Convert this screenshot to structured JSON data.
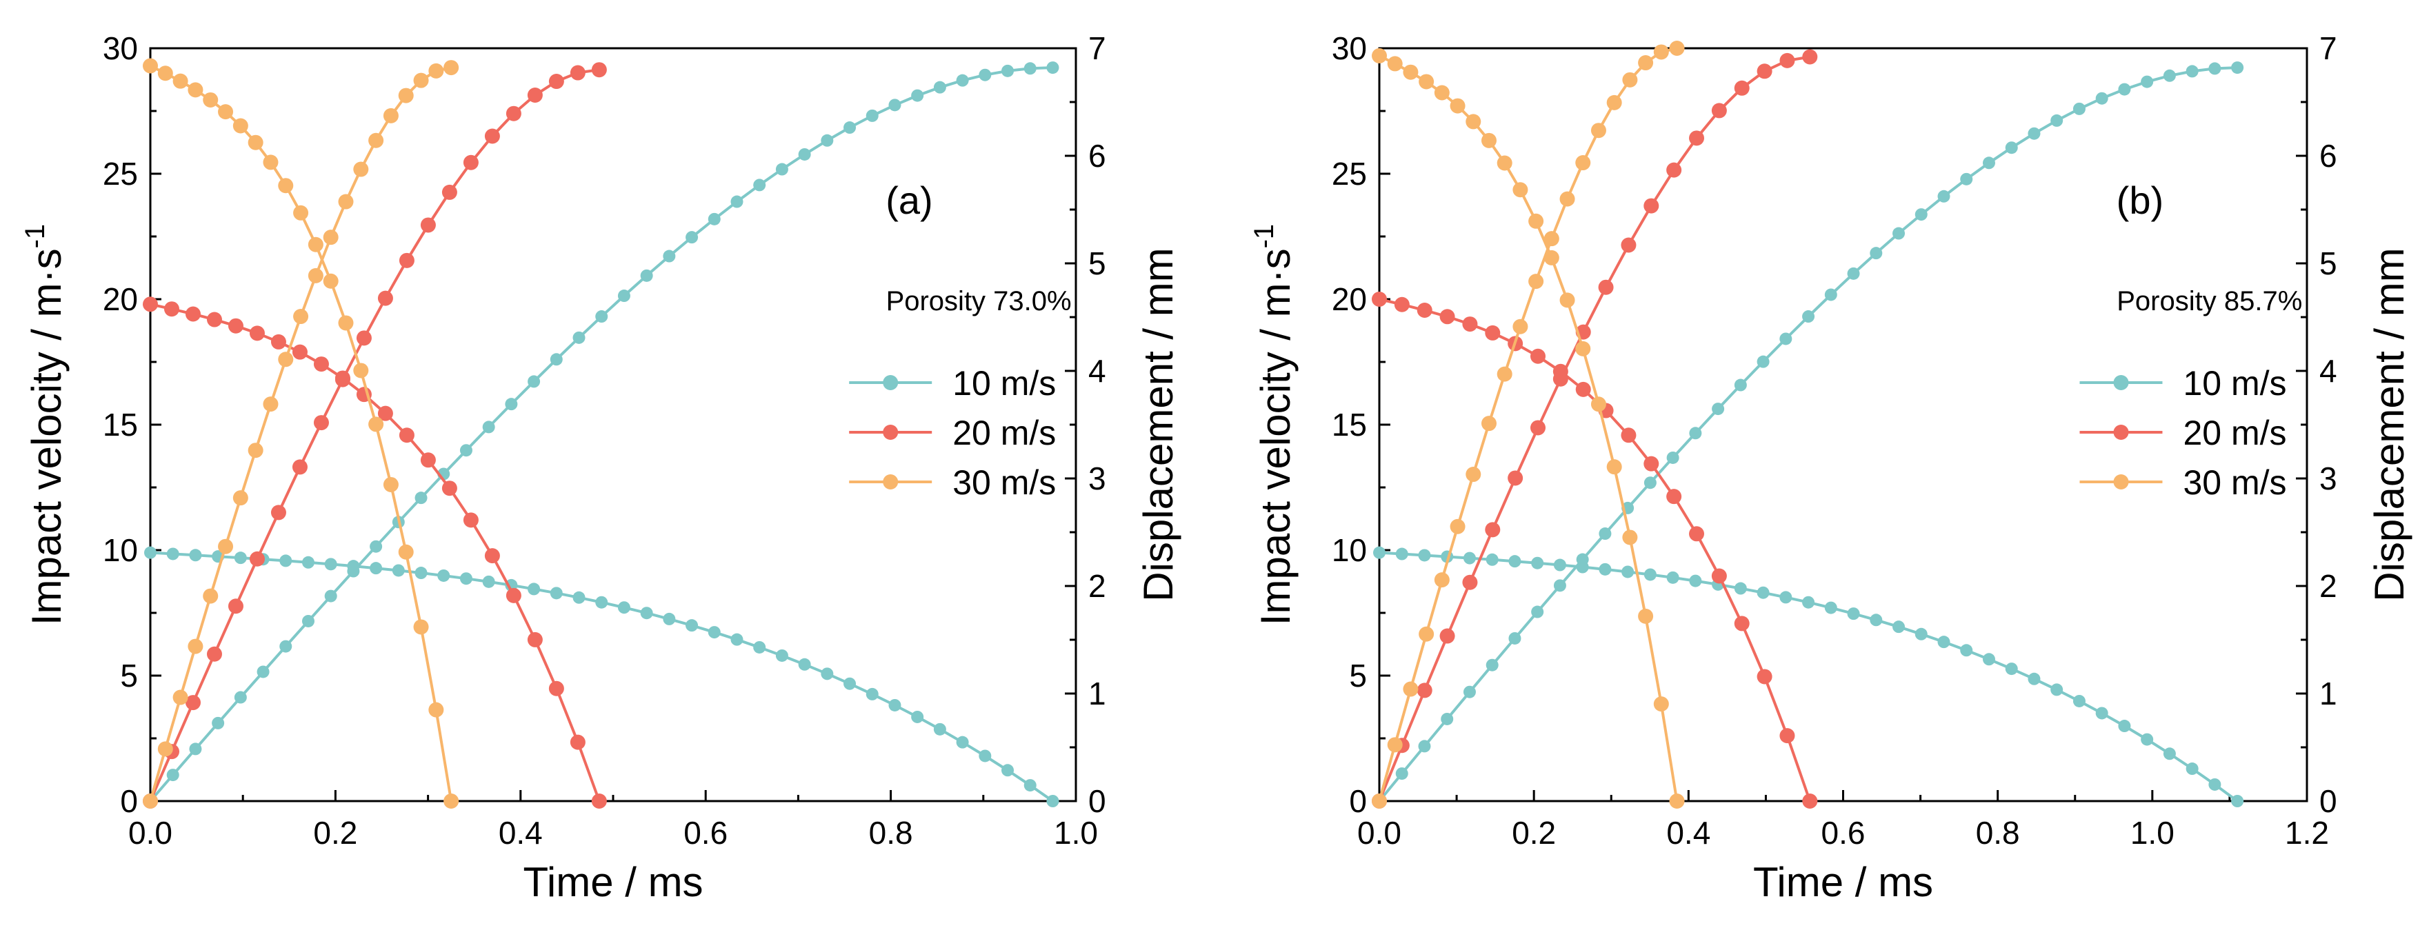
{
  "chart_data": [
    {
      "type": "line",
      "panel_label": "(a)",
      "annotation": "Porosity 73.0%",
      "xlabel": "Time / ms",
      "ylabel": "Impact velocity / m·s",
      "ylabel_sup": "-1",
      "y2label": "Displacement / mm",
      "xlim": [
        0.0,
        1.0
      ],
      "ylim": [
        0,
        30
      ],
      "y2lim": [
        0,
        7
      ],
      "xticks": [
        "0.0",
        "0.2",
        "0.4",
        "0.6",
        "0.8",
        "1.0"
      ],
      "yticks": [
        "0",
        "5",
        "10",
        "15",
        "20",
        "25",
        "30"
      ],
      "y2ticks": [
        "0",
        "1",
        "2",
        "3",
        "4",
        "5",
        "6",
        "7"
      ],
      "legend_position": "center-right",
      "series": [
        {
          "name": "10 m/s",
          "color": "#7ec8c8",
          "v0": 9.9,
          "duration": 0.975,
          "disp_max": 6.82,
          "points": 40
        },
        {
          "name": "20 m/s",
          "color": "#f06a5e",
          "v0": 19.8,
          "duration": 0.485,
          "disp_max": 6.8,
          "points": 21
        },
        {
          "name": "30 m/s",
          "color": "#f8b56a",
          "v0": 29.3,
          "duration": 0.325,
          "disp_max": 6.82,
          "points": 20
        }
      ]
    },
    {
      "type": "line",
      "panel_label": "(b)",
      "annotation": "Porosity 85.7%",
      "xlabel": "Time / ms",
      "ylabel": "Impact velocity / m·s",
      "ylabel_sup": "-1",
      "y2label": "Displacement / mm",
      "xlim": [
        0.0,
        1.2
      ],
      "ylim": [
        0,
        30
      ],
      "y2lim": [
        0,
        7
      ],
      "xticks": [
        "0.0",
        "0.2",
        "0.4",
        "0.6",
        "0.8",
        "1.0",
        "1.2"
      ],
      "yticks": [
        "0",
        "5",
        "10",
        "15",
        "20",
        "25",
        "30"
      ],
      "y2ticks": [
        "0",
        "1",
        "2",
        "3",
        "4",
        "5",
        "6",
        "7"
      ],
      "legend_position": "center-right",
      "series": [
        {
          "name": "10 m/s",
          "color": "#7ec8c8",
          "v0": 9.9,
          "duration": 1.11,
          "disp_max": 6.82,
          "points": 38
        },
        {
          "name": "20 m/s",
          "color": "#f06a5e",
          "v0": 20.0,
          "duration": 0.557,
          "disp_max": 6.92,
          "points": 19
        },
        {
          "name": "30 m/s",
          "color": "#f8b56a",
          "v0": 29.7,
          "duration": 0.385,
          "disp_max": 7.0,
          "points": 19
        }
      ]
    }
  ]
}
